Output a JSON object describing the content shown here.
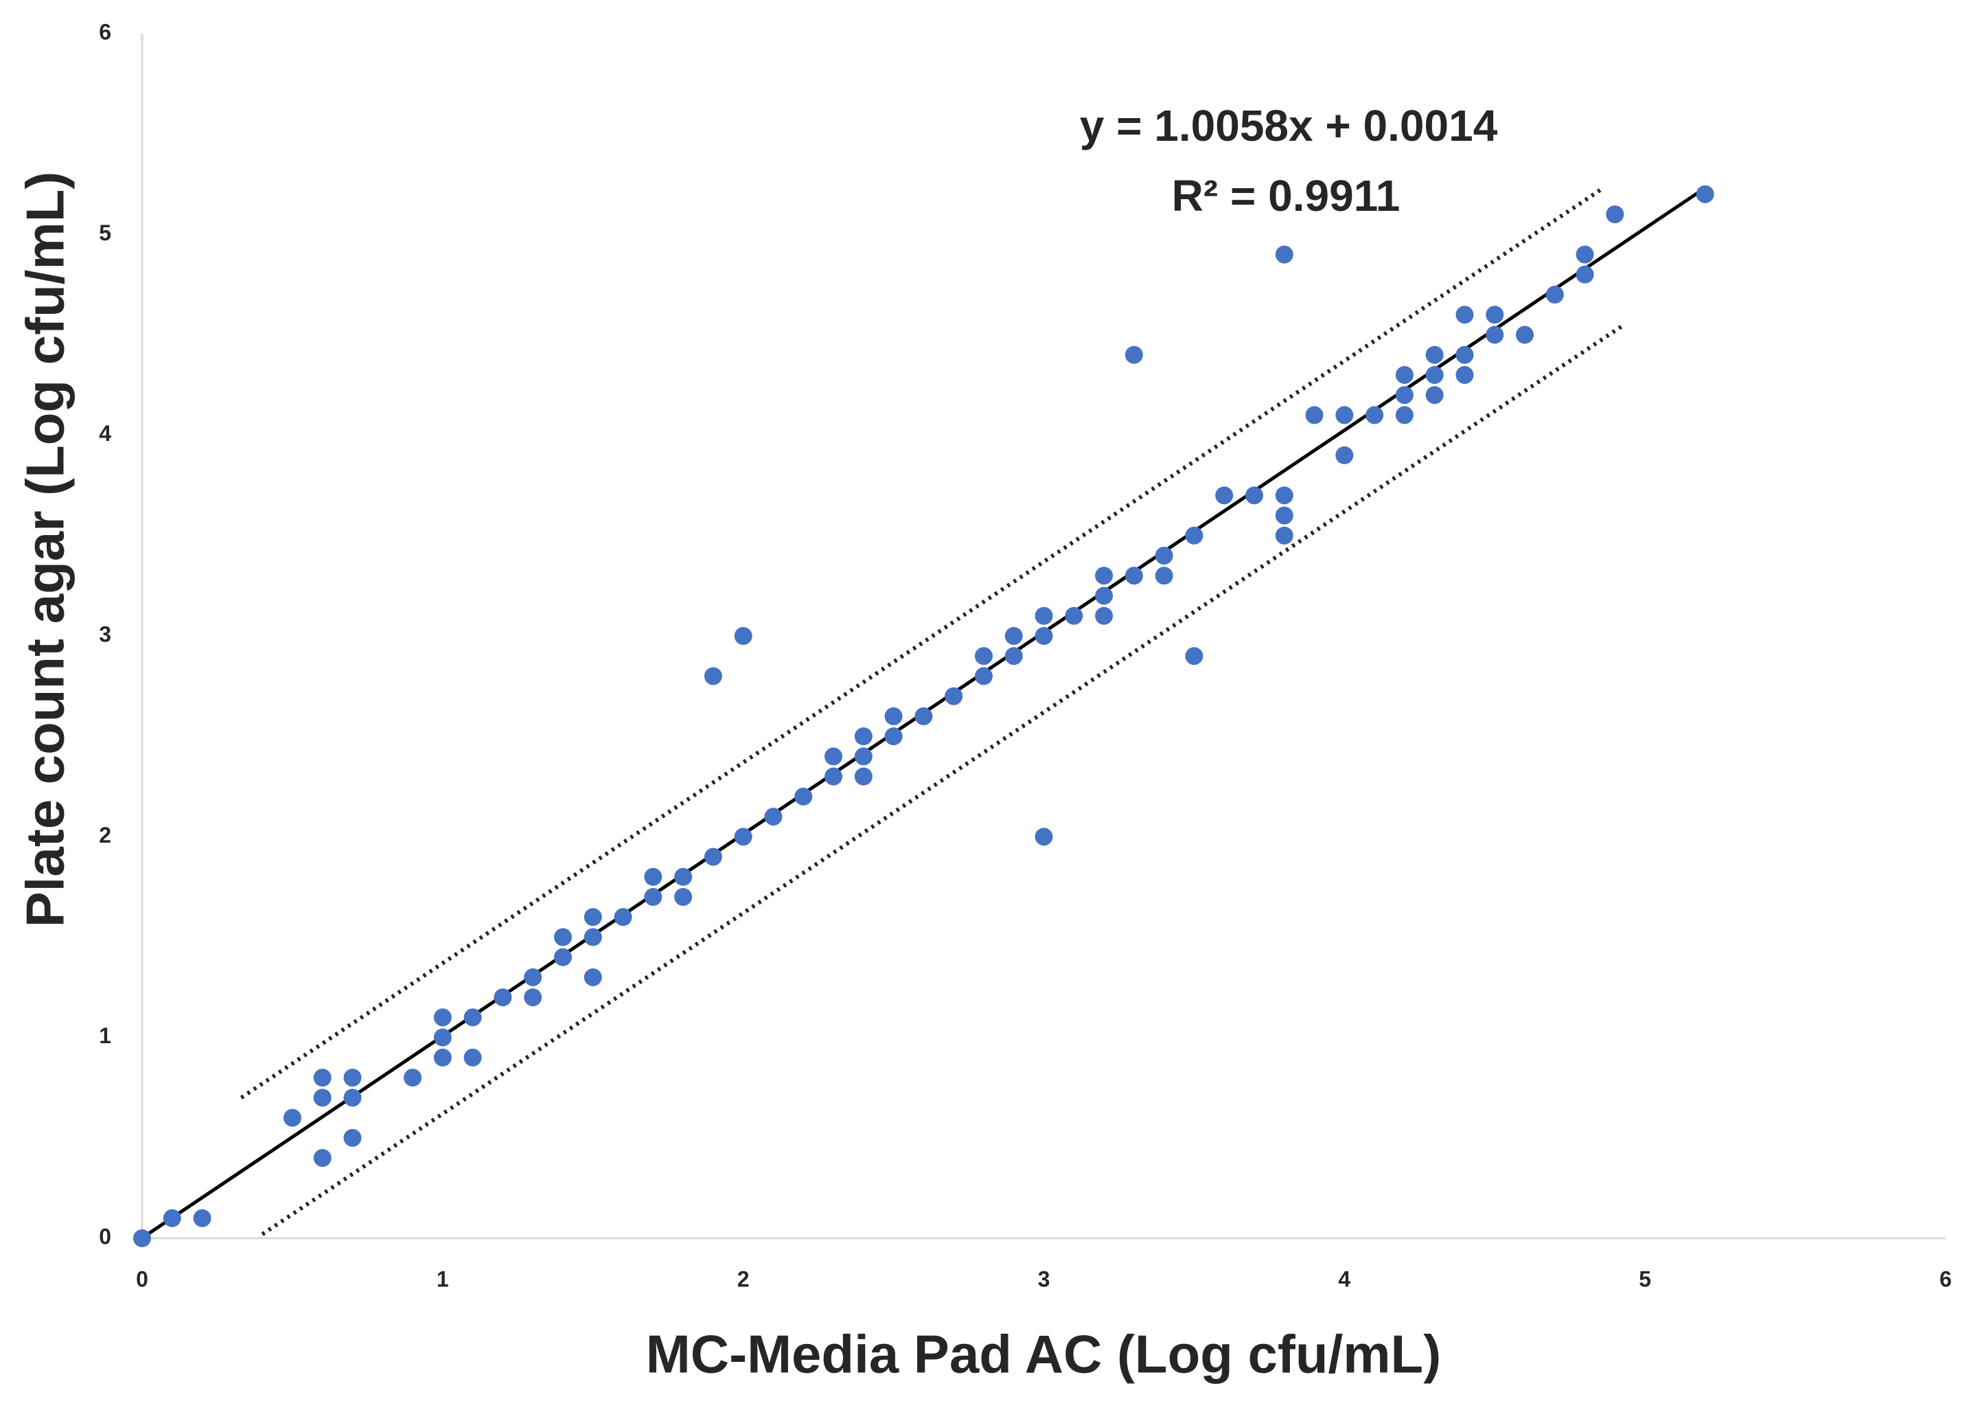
{
  "chart_data": {
    "type": "scatter",
    "x_label": "MC-Media Pad AC (Log cfu/mL)",
    "y_label": "Plate count agar (Log cfu/mL)",
    "xlim": [
      0,
      6
    ],
    "ylim": [
      0,
      6
    ],
    "xticks": [
      0,
      1,
      2,
      3,
      4,
      5,
      6
    ],
    "yticks": [
      0,
      1,
      2,
      3,
      4,
      5,
      6
    ],
    "grid": false,
    "color": "#4472c4",
    "x": [
      0,
      0.1,
      0.2,
      0.5,
      0.6,
      0.6,
      0.6,
      0.7,
      0.7,
      0.7,
      0.9,
      1,
      1,
      1,
      1.1,
      1.1,
      1.2,
      1.3,
      1.3,
      1.4,
      1.4,
      1.5,
      1.5,
      1.5,
      1.6,
      1.7,
      1.7,
      1.8,
      1.8,
      1.9,
      1.9,
      2,
      2,
      2.1,
      2.2,
      2.3,
      2.3,
      2.4,
      2.4,
      2.4,
      2.5,
      2.5,
      2.6,
      2.7,
      2.8,
      2.8,
      2.9,
      2.9,
      3,
      3,
      3,
      3.1,
      3.2,
      3.2,
      3.2,
      3.3,
      3.3,
      3.4,
      3.4,
      3.5,
      3.5,
      3.6,
      3.7,
      3.8,
      3.8,
      3.8,
      3.8,
      3.9,
      4,
      4,
      4.1,
      4.2,
      4.2,
      4.2,
      4.3,
      4.3,
      4.3,
      4.4,
      4.4,
      4.4,
      4.5,
      4.5,
      4.6,
      4.7,
      4.8,
      4.8,
      4.9,
      5.2
    ],
    "values": [
      0,
      0.1,
      0.1,
      0.6,
      0.8,
      0.7,
      0.4,
      0.8,
      0.7,
      0.5,
      0.8,
      1.1,
      1,
      0.9,
      1.1,
      0.9,
      1.2,
      1.3,
      1.2,
      1.5,
      1.4,
      1.6,
      1.5,
      1.3,
      1.6,
      1.8,
      1.7,
      1.8,
      1.7,
      1.9,
      2.8,
      3,
      2,
      2.1,
      2.2,
      2.4,
      2.3,
      2.5,
      2.4,
      2.3,
      2.6,
      2.5,
      2.6,
      2.7,
      2.9,
      2.8,
      3,
      2.9,
      3.1,
      3,
      2,
      3.1,
      3.3,
      3.2,
      3.1,
      3.3,
      4.4,
      3.4,
      3.3,
      3.5,
      2.9,
      3.7,
      3.7,
      4.9,
      3.7,
      3.6,
      3.5,
      4.1,
      4.1,
      3.9,
      4.1,
      4.3,
      4.2,
      4.1,
      4.4,
      4.3,
      4.2,
      4.6,
      4.4,
      4.3,
      4.6,
      4.5,
      4.5,
      4.7,
      4.9,
      4.8,
      5.1,
      5.2
    ],
    "trendline": {
      "equation": "y = 1.0058x + 0.0014",
      "r_squared": "R² = 0.9911",
      "slope": 1.0058,
      "intercept": 0.0014,
      "x": [
        0,
        5.2
      ]
    },
    "bounds": [
      {
        "x": [
          0.33,
          4.86
        ],
        "y": [
          0.7,
          5.23
        ]
      },
      {
        "x": [
          0.4,
          4.93
        ],
        "y": [
          0.02,
          4.55
        ]
      }
    ]
  }
}
